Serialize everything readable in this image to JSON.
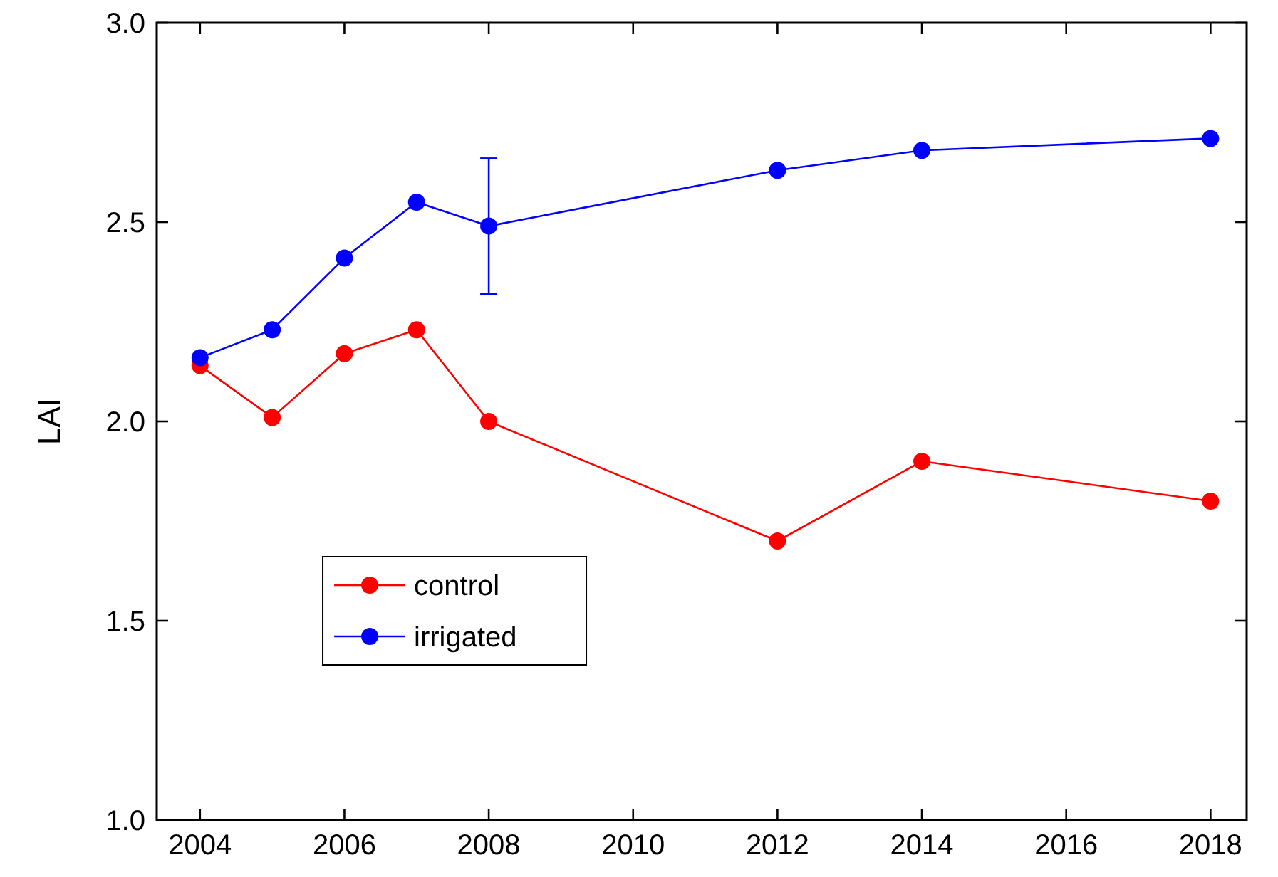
{
  "chart_data": {
    "type": "line",
    "ylabel": "LAI",
    "x": [
      2004,
      2005,
      2006,
      2007,
      2008,
      2012,
      2014,
      2018
    ],
    "xlim": [
      2003.4,
      2018.5
    ],
    "xticks": [
      2004,
      2006,
      2008,
      2010,
      2012,
      2014,
      2016,
      2018
    ],
    "ylim": [
      1.0,
      3.0
    ],
    "yticks": [
      {
        "value": 1.0,
        "label": "1.0"
      },
      {
        "value": 1.5,
        "label": "1.5"
      },
      {
        "value": 2.0,
        "label": "2.0"
      },
      {
        "value": 2.5,
        "label": "2.5"
      },
      {
        "value": 3.0,
        "label": "3.0"
      }
    ],
    "marker": "circle",
    "legend": "bottom left",
    "grid": false,
    "series": [
      {
        "name": "control",
        "color": "#ff0000",
        "values": [
          2.14,
          2.01,
          2.17,
          2.23,
          2.0,
          1.7,
          1.9,
          1.8
        ]
      },
      {
        "name": "irrigated",
        "color": "#0000ff",
        "values": [
          2.16,
          2.23,
          2.41,
          2.55,
          2.49,
          2.63,
          2.68,
          2.71
        ],
        "errors": [
          null,
          null,
          null,
          null,
          [
            2.32,
            2.66
          ],
          null,
          null,
          null
        ]
      }
    ]
  }
}
